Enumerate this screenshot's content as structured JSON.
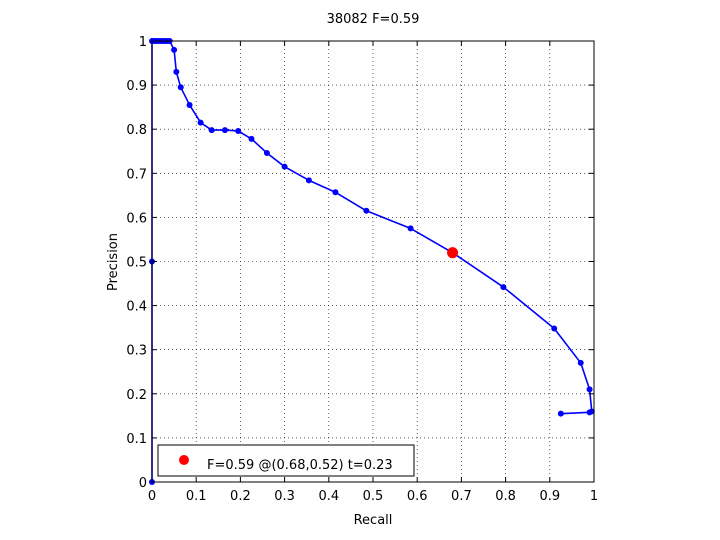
{
  "chart_data": {
    "type": "line",
    "title": "38082 F=0.59",
    "xlabel": "Recall",
    "ylabel": "Precision",
    "xlim": [
      0,
      1
    ],
    "ylim": [
      0,
      1
    ],
    "xticks": [
      "0",
      "0.1",
      "0.2",
      "0.3",
      "0.4",
      "0.5",
      "0.6",
      "0.7",
      "0.8",
      "0.9",
      "1"
    ],
    "yticks": [
      "0",
      "0.1",
      "0.2",
      "0.3",
      "0.4",
      "0.5",
      "0.6",
      "0.7",
      "0.8",
      "0.9",
      "1"
    ],
    "grid": true,
    "legend_position": "bottom-left",
    "series": [
      {
        "color": "#0000ff",
        "x": [
          0,
          0,
          0,
          0.002,
          0.006,
          0.01,
          0.015,
          0.02,
          0.025,
          0.03,
          0.035,
          0.04,
          0.05,
          0.055,
          0.065,
          0.085,
          0.11,
          0.135,
          0.165,
          0.195,
          0.225,
          0.26,
          0.3,
          0.355,
          0.415,
          0.485,
          0.585,
          0.68,
          0.795,
          0.91,
          0.97,
          0.99,
          0.995,
          0.99,
          0.925
        ],
        "y": [
          0,
          0.5,
          1.0,
          1.0,
          1.0,
          1.0,
          1.0,
          1.0,
          1.0,
          1.0,
          1.0,
          1.0,
          0.98,
          0.93,
          0.895,
          0.855,
          0.815,
          0.798,
          0.798,
          0.796,
          0.778,
          0.746,
          0.715,
          0.684,
          0.657,
          0.615,
          0.575,
          0.52,
          0.442,
          0.348,
          0.27,
          0.21,
          0.16,
          0.158,
          0.155
        ]
      }
    ],
    "highlight": {
      "x": 0.68,
      "y": 0.52,
      "color": "#ff0000"
    },
    "legend": {
      "label": "F=0.59 @(0.68,0.52) t=0.23"
    }
  }
}
